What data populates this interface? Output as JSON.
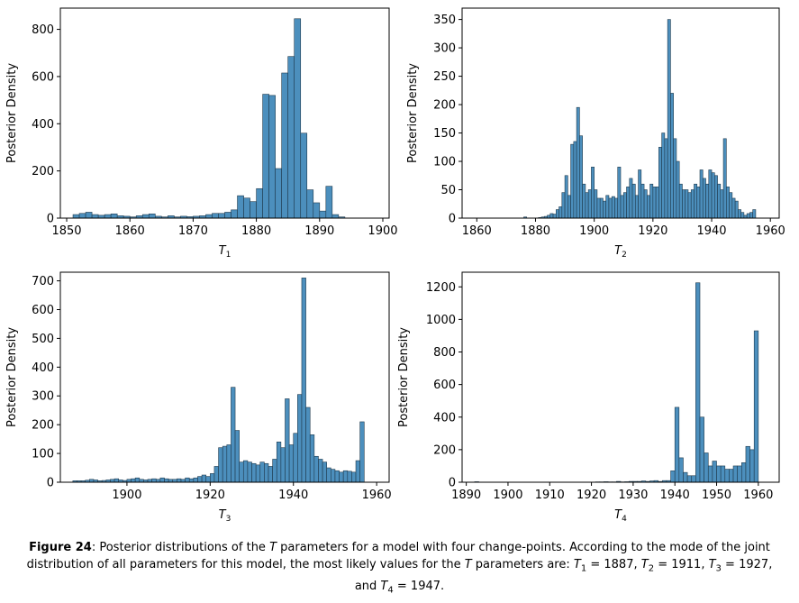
{
  "caption": {
    "figure_label": "Figure 24",
    "text_1": ": Posterior distributions of the ",
    "t_symbol": "T",
    "text_2": " parameters for a model with four change-points. According to the mode of the joint distribution of all parameters for this model, the most likely values for the ",
    "text_3": " parameters are: ",
    "values": [
      {
        "name": "T",
        "sub": "1",
        "value": "1887"
      },
      {
        "name": "T",
        "sub": "2",
        "value": "1911"
      },
      {
        "name": "T",
        "sub": "3",
        "value": "1927"
      },
      {
        "name": "T",
        "sub": "4",
        "value": "1947"
      }
    ]
  },
  "colors": {
    "bar_fill": "#4c8fbd",
    "bar_edge": "#1f3a4d"
  },
  "chart_data": [
    {
      "type": "bar",
      "xlabel": "T",
      "xlabel_sub": "1",
      "ylabel": "Posterior Density",
      "xlim": [
        1849,
        1901
      ],
      "ylim": [
        0,
        890
      ],
      "xticks": [
        1850,
        1860,
        1870,
        1880,
        1890,
        1900
      ],
      "yticks": [
        0,
        200,
        400,
        600,
        800
      ],
      "x0": 1851,
      "bin_width": 1,
      "values": [
        15,
        20,
        25,
        15,
        12,
        15,
        18,
        10,
        8,
        5,
        10,
        15,
        18,
        8,
        5,
        10,
        5,
        8,
        6,
        8,
        10,
        15,
        20,
        20,
        25,
        35,
        95,
        85,
        70,
        125,
        525,
        520,
        210,
        615,
        685,
        845,
        360,
        120,
        65,
        30,
        135,
        15,
        5
      ]
    },
    {
      "type": "bar",
      "xlabel": "T",
      "xlabel_sub": "2",
      "ylabel": "Posterior Density",
      "xlim": [
        1855,
        1963
      ],
      "ylim": [
        0,
        370
      ],
      "xticks": [
        1860,
        1880,
        1900,
        1920,
        1940,
        1960
      ],
      "yticks": [
        0,
        50,
        100,
        150,
        200,
        250,
        300,
        350
      ],
      "x0": 1860,
      "bin_width": 1,
      "values": [
        0,
        0,
        0,
        0,
        0,
        0,
        0,
        0,
        0,
        0,
        0,
        0,
        0,
        0,
        0,
        0,
        2,
        0,
        0,
        0,
        0,
        1,
        2,
        3,
        5,
        8,
        7,
        15,
        20,
        45,
        75,
        40,
        130,
        135,
        195,
        145,
        60,
        45,
        50,
        90,
        50,
        35,
        35,
        30,
        40,
        35,
        38,
        35,
        90,
        40,
        45,
        55,
        70,
        60,
        40,
        85,
        60,
        50,
        40,
        60,
        55,
        55,
        125,
        150,
        140,
        350,
        220,
        140,
        100,
        60,
        50,
        50,
        45,
        50,
        60,
        55,
        85,
        70,
        60,
        85,
        80,
        75,
        60,
        50,
        140,
        55,
        45,
        35,
        30,
        15,
        10,
        5,
        8,
        10,
        15
      ]
    },
    {
      "type": "bar",
      "xlabel": "T",
      "xlabel_sub": "3",
      "ylabel": "Posterior Density",
      "xlim": [
        1884,
        1963
      ],
      "ylim": [
        0,
        730
      ],
      "xticks": [
        1900,
        1920,
        1940,
        1960
      ],
      "yticks": [
        0,
        100,
        200,
        300,
        400,
        500,
        600,
        700
      ],
      "x0": 1887,
      "bin_width": 1,
      "values": [
        5,
        5,
        5,
        7,
        10,
        8,
        5,
        6,
        8,
        10,
        12,
        8,
        6,
        10,
        12,
        15,
        10,
        8,
        10,
        12,
        10,
        15,
        12,
        10,
        10,
        12,
        10,
        15,
        12,
        15,
        20,
        25,
        20,
        30,
        55,
        120,
        125,
        130,
        330,
        180,
        70,
        75,
        70,
        65,
        60,
        70,
        65,
        55,
        80,
        140,
        120,
        290,
        130,
        170,
        305,
        710,
        260,
        165,
        90,
        80,
        70,
        50,
        45,
        40,
        35,
        40,
        38,
        35,
        75,
        210
      ]
    },
    {
      "type": "bar",
      "xlabel": "T",
      "xlabel_sub": "4",
      "ylabel": "Posterior Density",
      "xlim": [
        1889,
        1965
      ],
      "ylim": [
        0,
        1290
      ],
      "xticks": [
        1890,
        1900,
        1910,
        1920,
        1930,
        1940,
        1950,
        1960
      ],
      "yticks": [
        0,
        200,
        400,
        600,
        800,
        1000,
        1200
      ],
      "x0": 1892,
      "bin_width": 1,
      "values": [
        3,
        0,
        0,
        0,
        0,
        0,
        0,
        0,
        0,
        0,
        0,
        0,
        0,
        0,
        0,
        0,
        0,
        0,
        0,
        0,
        0,
        0,
        0,
        0,
        0,
        0,
        0,
        0,
        0,
        2,
        2,
        3,
        2,
        2,
        5,
        2,
        3,
        5,
        5,
        5,
        8,
        5,
        8,
        10,
        5,
        10,
        10,
        70,
        460,
        150,
        60,
        40,
        40,
        1225,
        400,
        180,
        100,
        130,
        100,
        100,
        80,
        80,
        100,
        100,
        120,
        220,
        200,
        930
      ]
    }
  ]
}
